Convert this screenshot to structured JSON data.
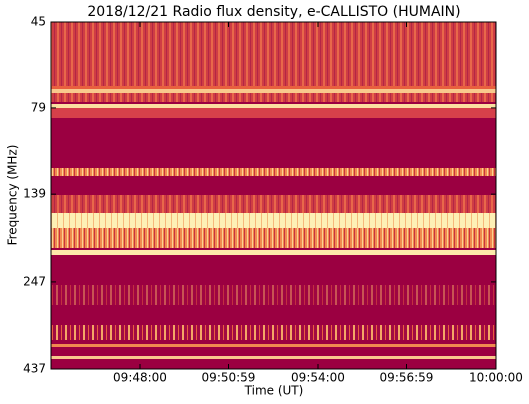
{
  "chart_data": {
    "type": "spectrogram",
    "title": "2018/12/21  Radio flux density, e-CALLISTO (HUMAIN)",
    "x_label": "Time (UT)",
    "y_label": "Frequency (MHz)",
    "xlim": [
      "09:45:00",
      "10:00:00"
    ],
    "xticks": [
      "09:48:00",
      "09:50:59",
      "09:54:00",
      "09:56:59",
      "10:00:00"
    ],
    "ylim": [
      437,
      45
    ],
    "yticks": [
      45,
      79,
      139,
      247,
      437
    ],
    "y_log_scale": true,
    "y_inverted": true
  }
}
